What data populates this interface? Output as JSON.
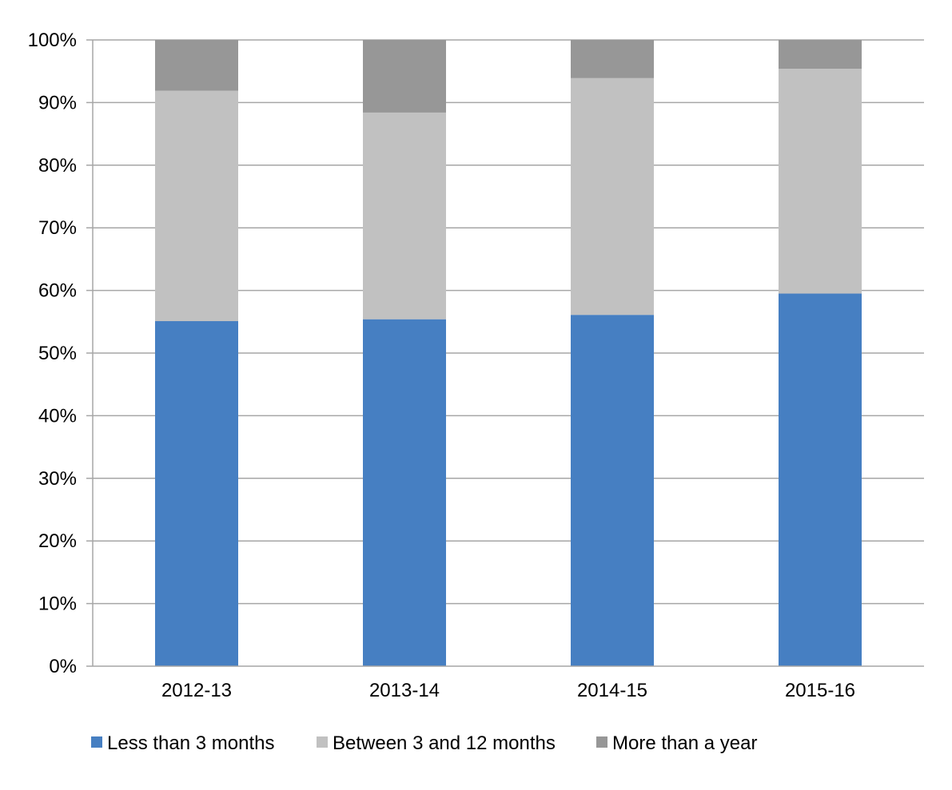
{
  "chart_data": {
    "type": "bar",
    "stacked": true,
    "categories": [
      "2012-13",
      "2013-14",
      "2014-15",
      "2015-16"
    ],
    "series": [
      {
        "name": "Less than 3 months",
        "color": "#467fc2",
        "values": [
          55.1,
          55.4,
          56.1,
          59.5
        ]
      },
      {
        "name": "Between 3 and 12 months",
        "color": "#c1c1c1",
        "values": [
          36.8,
          33.0,
          37.8,
          35.9
        ]
      },
      {
        "name": "More than a year",
        "color": "#979797",
        "values": [
          8.1,
          11.6,
          6.1,
          4.6
        ]
      }
    ],
    "y_ticks": [
      "0%",
      "10%",
      "20%",
      "30%",
      "40%",
      "50%",
      "60%",
      "70%",
      "80%",
      "90%",
      "100%"
    ],
    "ylim": [
      0,
      100
    ],
    "grid": true,
    "legend_position": "bottom",
    "title": "",
    "xlabel": "",
    "ylabel": ""
  }
}
